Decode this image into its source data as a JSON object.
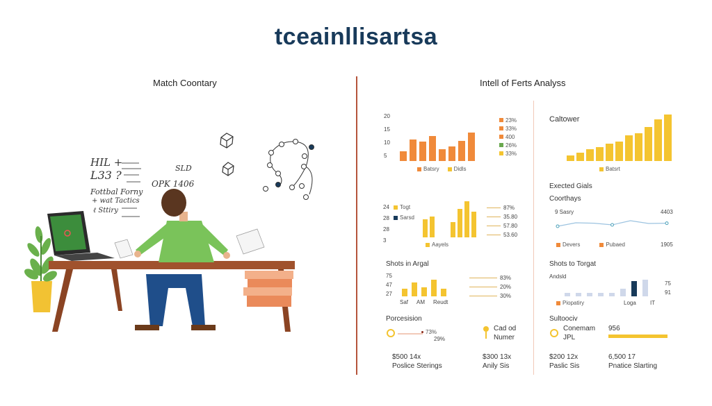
{
  "title": "tceainllisartsa",
  "left": {
    "heading": "Match Coontary",
    "notes": [
      "HIL +",
      "L33 ?",
      "Fottbal Forny",
      "+ wat Tactics",
      "ℓ Sttiry",
      "SLD",
      "OPK  1406"
    ]
  },
  "right": {
    "heading": "Intell of Ferts Analyss",
    "p1": {
      "yticks": [
        "20",
        "15",
        "10",
        "5"
      ],
      "values": [
        10,
        22,
        20,
        26,
        12,
        15,
        21,
        29
      ],
      "colors": [
        "#f08a3a",
        "#f08a3a",
        "#f08a3a",
        "#f08a3a",
        "#f08a3a",
        "#f08a3a",
        "#f08a3a",
        "#f08a3a"
      ],
      "legend": [
        "Batsry",
        "Didls"
      ],
      "side": [
        {
          "text": "23%",
          "color": "#f08a3a"
        },
        {
          "text": "33%",
          "color": "#f08a3a"
        },
        {
          "text": "400",
          "color": "#f08a3a"
        },
        {
          "text": "26%",
          "color": "#6aa84f"
        },
        {
          "text": "33%",
          "color": "#f4c430"
        }
      ]
    },
    "p2": {
      "heading": "Caltower",
      "values": [
        5,
        7,
        10,
        12,
        15,
        17,
        22,
        24,
        29,
        36,
        40
      ],
      "legend": "Batsrt"
    },
    "p3": {
      "yticks": [
        "24",
        "28",
        "28",
        "3"
      ],
      "legend": [
        {
          "text": "Togt",
          "color": "#f4c430"
        },
        {
          "text": "Sarsd",
          "color": "#183a5a"
        }
      ],
      "values": [
        14,
        16,
        0,
        0,
        12,
        22,
        28,
        20
      ],
      "bottom": "Aayels",
      "right": [
        "87%",
        "35.80",
        "57.80",
        "53.60"
      ]
    },
    "p4": {
      "heading": "Exected Gials",
      "sub": "Coorthays",
      "left": "9 Sasry",
      "right": "4403",
      "points": [
        0.5,
        0.75,
        0.72,
        0.6,
        0.9,
        0.7,
        0.72
      ],
      "legend": [
        {
          "text": "Devers",
          "color": "#f08a3a"
        },
        {
          "text": "Pubaed",
          "color": "#f08a3a"
        }
      ],
      "legend_right": "1905"
    },
    "p5": {
      "heading": "Shots in Argal",
      "yticks": [
        "75",
        "47",
        "27"
      ],
      "values": [
        10,
        18,
        12,
        22,
        10
      ],
      "xlabels": [
        "Saf",
        "AM",
        "Reudt"
      ],
      "right": [
        "83%",
        "20%",
        "30%"
      ]
    },
    "p6": {
      "heading": "Shots to Torgat",
      "sub": "Andsld",
      "values": [
        5,
        5,
        5,
        5,
        5,
        10,
        20,
        22
      ],
      "colors": [
        "#cfd8ea",
        "#cfd8ea",
        "#cfd8ea",
        "#cfd8ea",
        "#cfd8ea",
        "#cfd8ea",
        "#183a5a",
        "#cfd8ea"
      ],
      "right": [
        "75",
        "91"
      ],
      "legend": "Piopatiry",
      "x1": "Loga",
      "x2": "IT"
    },
    "p7": {
      "heading": "Porcesision",
      "r1": "73%",
      "r2": "29%",
      "mid1": "Cad od",
      "mid2": "Numer",
      "b1": "$500 14x",
      "b2": "Poslice Sterings",
      "b3": "$300 13x",
      "b4": "Anily Sis"
    },
    "p8": {
      "heading": "Sultoociv",
      "m1": "Conemam",
      "m2": "JPL",
      "r": "956",
      "b1": "$200 12x",
      "b2": "Paslic Sis",
      "b3": "6,500 17",
      "b4": "Pnatice Slarting"
    }
  }
}
